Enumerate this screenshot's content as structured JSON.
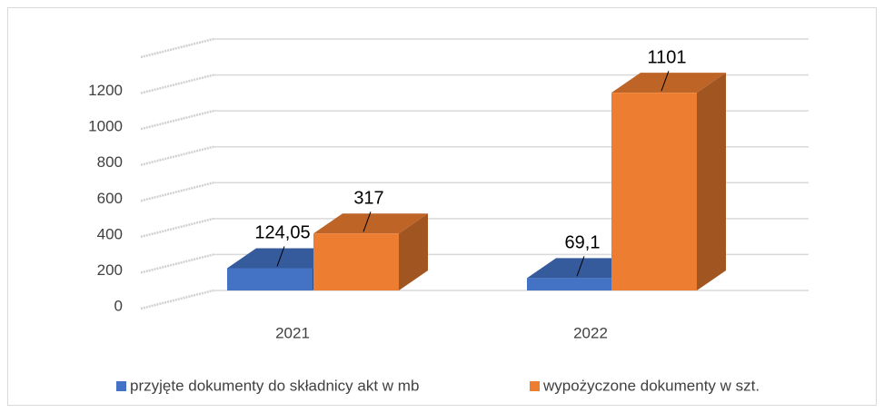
{
  "chart_data": {
    "type": "bar3d",
    "categories": [
      "2021",
      "2022"
    ],
    "series": [
      {
        "name": "przyjęte dokumenty do składnicy akt w mb",
        "color": "#4472c4",
        "values": [
          124.05,
          69.1
        ],
        "value_labels": [
          "124,05",
          "69,1"
        ]
      },
      {
        "name": "wypożyczone dokumenty w szt.",
        "color": "#ed7d31",
        "values": [
          317,
          1101
        ]
      }
    ],
    "ylim": [
      0,
      1400
    ],
    "yticks": [
      0,
      200,
      400,
      600,
      800,
      1000,
      1200
    ],
    "grid": true,
    "legend": "bottom"
  }
}
